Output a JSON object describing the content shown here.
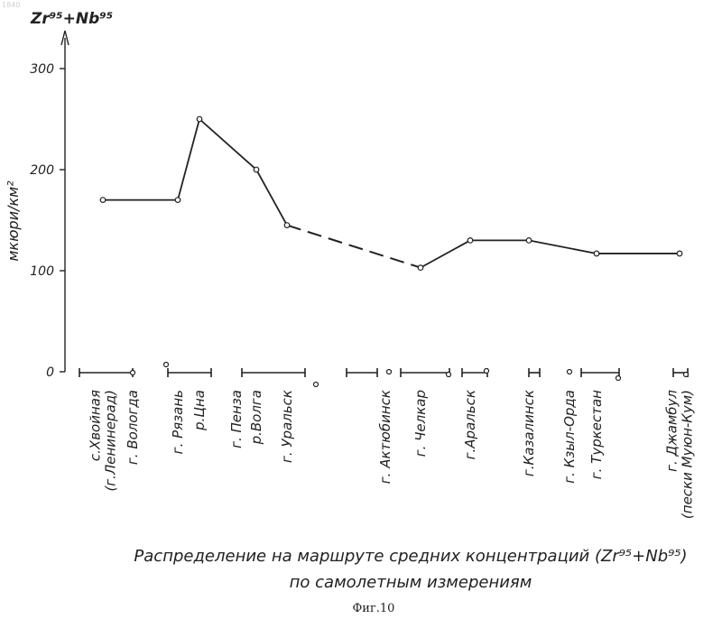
{
  "chart_data": {
    "type": "line",
    "title": "Распределение на маршруте средних концентраций (Zr⁹⁵+Nb⁹⁵)",
    "subtitle": "по самолетным измерениям",
    "caption": "Фиг.10",
    "axis_title": "Zr⁹⁵+Nb⁹⁵",
    "ylabel": "мкюри/км²",
    "ylim": [
      0,
      330
    ],
    "yticks": [
      0,
      100,
      200,
      300
    ],
    "stations": [
      "с.Хвойная (г.Ленинерад)",
      "г. Вологда",
      "г. Рязань",
      "р.Цна",
      "г. Пенза",
      "р.Волга",
      "г. Уральск",
      "г. Актюбинск",
      "г. Челкар",
      "г.Аральск",
      "г.Казалинск",
      "г. Кзыл-Орда",
      "г. Туркестан",
      "г. Джамбул (пески Муюн-Кум)"
    ],
    "series": [
      {
        "style": "solid",
        "points": [
          {
            "station": "с.Хвойная (г.Ленинерад)",
            "y": 170
          },
          {
            "station": "г. Рязань",
            "y": 170
          },
          {
            "station": "р.Цна",
            "y": 250
          },
          {
            "station": "р.Волга",
            "y": 200
          },
          {
            "station": "г. Уральск",
            "y": 145
          }
        ]
      },
      {
        "style": "dashed",
        "points": [
          {
            "station": "г. Уральск",
            "y": 145
          },
          {
            "station": "г. Челкар",
            "y": 103
          }
        ]
      },
      {
        "style": "solid",
        "points": [
          {
            "station": "г. Челкар",
            "y": 103
          },
          {
            "station": "г.Аральск",
            "y": 130
          },
          {
            "station": "г.Казалинск",
            "y": 130
          },
          {
            "station": "г. Туркестан",
            "y": 117
          },
          {
            "station": "г. Джамбул (пески Муюн-Кум)",
            "y": 117
          }
        ]
      }
    ]
  }
}
